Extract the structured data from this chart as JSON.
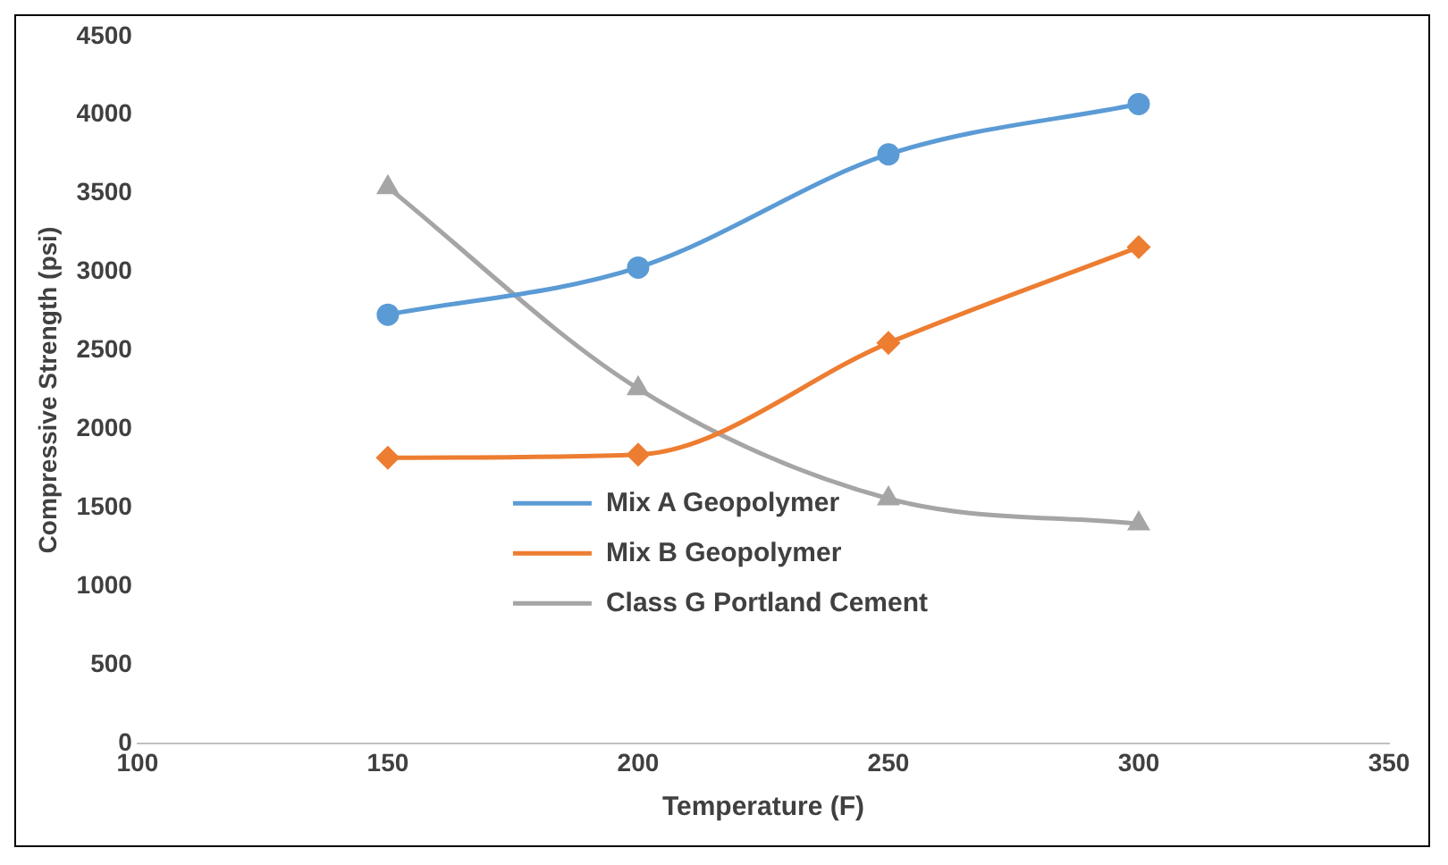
{
  "chart_data": {
    "type": "line",
    "xlabel": "Temperature (F)",
    "ylabel": "Compressive Strength (psi)",
    "x": [
      150,
      200,
      250,
      300
    ],
    "series": [
      {
        "name": "Mix A Geopolymer",
        "color": "#5b9bd5",
        "marker": "circle",
        "values": [
          2730,
          3030,
          3750,
          4070
        ]
      },
      {
        "name": "Mix B Geopolymer",
        "color": "#ed7d31",
        "marker": "diamond",
        "values": [
          1820,
          1840,
          2550,
          3160
        ]
      },
      {
        "name": "Class G Portland Cement",
        "color": "#a5a5a5",
        "marker": "triangle",
        "values": [
          3540,
          2260,
          1560,
          1400
        ]
      }
    ],
    "xlim": [
      100,
      350
    ],
    "xticks": [
      100,
      150,
      200,
      250,
      300,
      350
    ],
    "ylim": [
      0,
      4500
    ],
    "yticks": [
      0,
      500,
      1000,
      1500,
      2000,
      2500,
      3000,
      3500,
      4000,
      4500
    ],
    "grid": false,
    "legend": "bottom"
  }
}
